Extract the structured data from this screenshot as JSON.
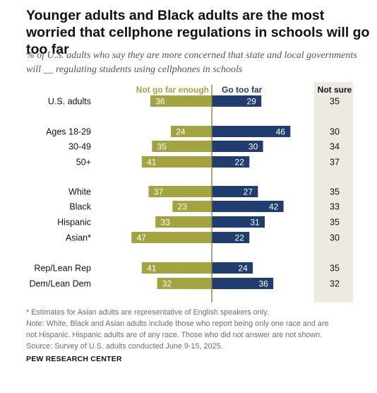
{
  "title": "Younger adults and Black adults are the most worried that cellphone regulations in schools will go too far",
  "subtitle": "% of U.S. adults who say they are more concerned that state and local governments will __ regulating students using cellphones in schools",
  "colors": {
    "not_far_enough": "#a3a33f",
    "too_far": "#1f3d6e",
    "not_sure_bg": "#efeae1",
    "axis": "#7a7a3a"
  },
  "chart_data": {
    "type": "bar",
    "categories": [
      "U.S. adults",
      "Ages 18-29",
      "30-49",
      "50+",
      "White",
      "Black",
      "Hispanic",
      "Asian*",
      "Rep/Lean Rep",
      "Dem/Lean Dem"
    ],
    "series": [
      {
        "name": "Not go far enough",
        "values": [
          36,
          24,
          35,
          41,
          37,
          23,
          33,
          47,
          41,
          32
        ]
      },
      {
        "name": "Go too far",
        "values": [
          29,
          46,
          30,
          22,
          27,
          42,
          31,
          22,
          24,
          36
        ]
      },
      {
        "name": "Not sure",
        "values": [
          35,
          30,
          34,
          37,
          35,
          33,
          35,
          30,
          35,
          32
        ]
      }
    ],
    "groups": [
      [
        0
      ],
      [
        1,
        2,
        3
      ],
      [
        4,
        5,
        6,
        7
      ],
      [
        8,
        9
      ]
    ]
  },
  "notes": [
    "* Estimates for Asian adults are representative of English speakers only.",
    "Note: White, Black and Asian adults include those who report being only one race and are",
    "not Hispanic. Hispanic adults are of any race. Those who did not answer are not shown.",
    "Source: Survey of U.S. adults conducted June 9-15, 2025."
  ],
  "brand": "PEW RESEARCH CENTER"
}
